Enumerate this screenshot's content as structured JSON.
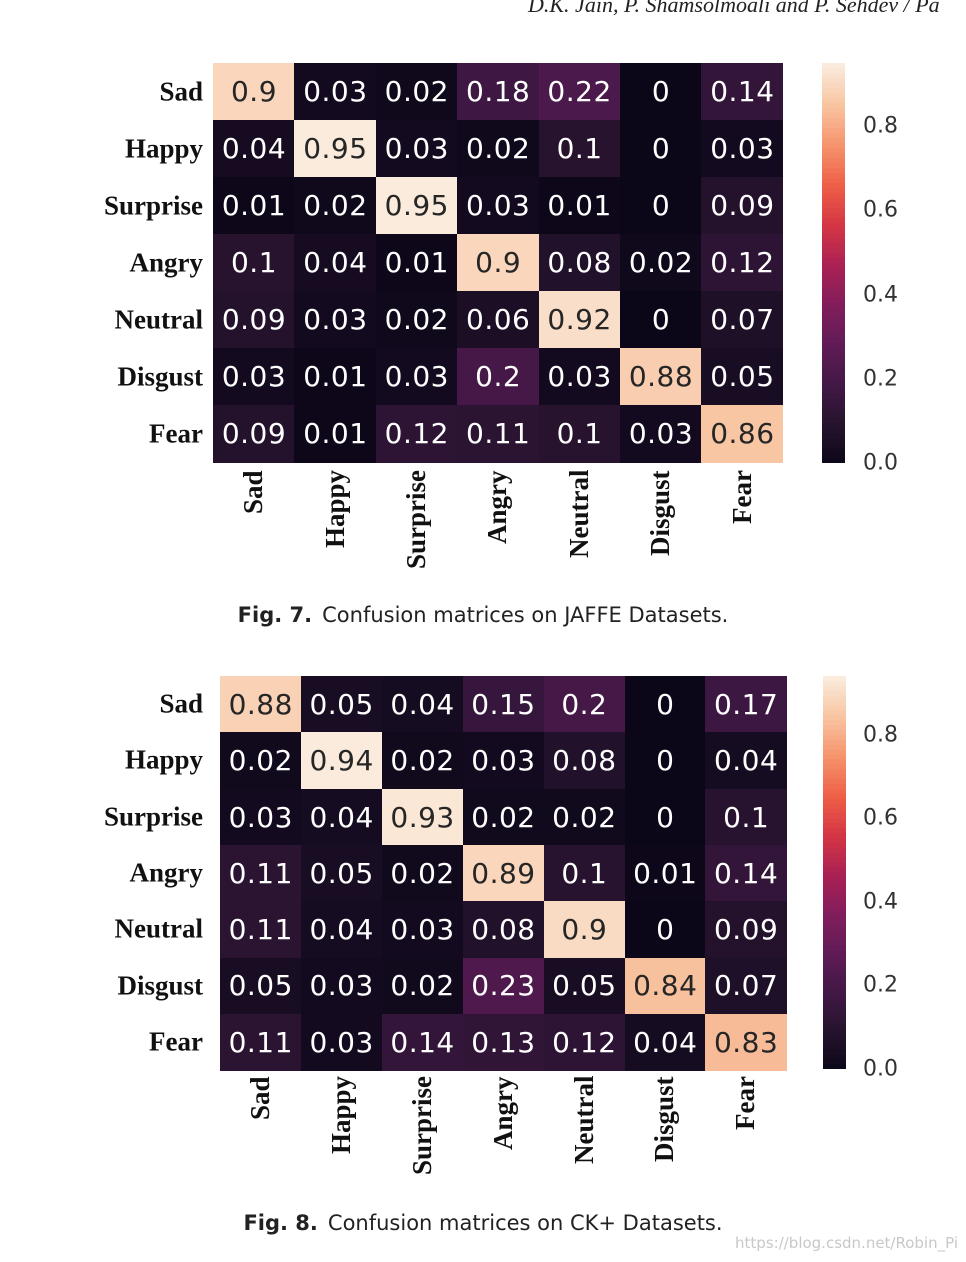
{
  "header": {
    "running_title": "D.K. Jain, P. Shamsolmoali and P. Sehdev / Pa"
  },
  "chart_data": [
    {
      "type": "heatmap",
      "figure_label": "Fig. 7.",
      "caption": "Confusion matrices on JAFFE Datasets.",
      "row_labels": [
        "Sad",
        "Happy",
        "Surprise",
        "Angry",
        "Neutral",
        "Disgust",
        "Fear"
      ],
      "col_labels": [
        "Sad",
        "Happy",
        "Surprise",
        "Angry",
        "Neutral",
        "Disgust",
        "Fear"
      ],
      "values": [
        [
          0.9,
          0.03,
          0.02,
          0.18,
          0.22,
          0,
          0.14
        ],
        [
          0.04,
          0.95,
          0.03,
          0.02,
          0.1,
          0,
          0.03
        ],
        [
          0.01,
          0.02,
          0.95,
          0.03,
          0.01,
          0,
          0.09
        ],
        [
          0.1,
          0.04,
          0.01,
          0.9,
          0.08,
          0.02,
          0.12
        ],
        [
          0.09,
          0.03,
          0.02,
          0.06,
          0.92,
          0,
          0.07
        ],
        [
          0.03,
          0.01,
          0.03,
          0.2,
          0.03,
          0.88,
          0.05
        ],
        [
          0.09,
          0.01,
          0.12,
          0.11,
          0.1,
          0.03,
          0.86
        ]
      ],
      "labels": [
        [
          "0.9",
          "0.03",
          "0.02",
          "0.18",
          "0.22",
          "0",
          "0.14"
        ],
        [
          "0.04",
          "0.95",
          "0.03",
          "0.02",
          "0.1",
          "0",
          "0.03"
        ],
        [
          "0.01",
          "0.02",
          "0.95",
          "0.03",
          "0.01",
          "0",
          "0.09"
        ],
        [
          "0.1",
          "0.04",
          "0.01",
          "0.9",
          "0.08",
          "0.02",
          "0.12"
        ],
        [
          "0.09",
          "0.03",
          "0.02",
          "0.06",
          "0.92",
          "0",
          "0.07"
        ],
        [
          "0.03",
          "0.01",
          "0.03",
          "0.2",
          "0.03",
          "0.88",
          "0.05"
        ],
        [
          "0.09",
          "0.01",
          "0.12",
          "0.11",
          "0.1",
          "0.03",
          "0.86"
        ]
      ],
      "colorbar": {
        "range": [
          0,
          0.95
        ],
        "ticks": [
          "0.0",
          "0.2",
          "0.4",
          "0.6",
          "0.8"
        ],
        "tick_values": [
          0,
          0.2,
          0.4,
          0.6,
          0.8
        ],
        "colormap": "rocket"
      }
    },
    {
      "type": "heatmap",
      "figure_label": "Fig. 8.",
      "caption": "Confusion matrices on CK+ Datasets.",
      "row_labels": [
        "Sad",
        "Happy",
        "Surprise",
        "Angry",
        "Neutral",
        "Disgust",
        "Fear"
      ],
      "col_labels": [
        "Sad",
        "Happy",
        "Surprise",
        "Angry",
        "Neutral",
        "Disgust",
        "Fear"
      ],
      "values": [
        [
          0.88,
          0.05,
          0.04,
          0.15,
          0.2,
          0,
          0.17
        ],
        [
          0.02,
          0.94,
          0.02,
          0.03,
          0.08,
          0,
          0.04
        ],
        [
          0.03,
          0.04,
          0.93,
          0.02,
          0.02,
          0,
          0.1
        ],
        [
          0.11,
          0.05,
          0.02,
          0.89,
          0.1,
          0.01,
          0.14
        ],
        [
          0.11,
          0.04,
          0.03,
          0.08,
          0.9,
          0,
          0.09
        ],
        [
          0.05,
          0.03,
          0.02,
          0.23,
          0.05,
          0.84,
          0.07
        ],
        [
          0.11,
          0.03,
          0.14,
          0.13,
          0.12,
          0.04,
          0.83
        ]
      ],
      "labels": [
        [
          "0.88",
          "0.05",
          "0.04",
          "0.15",
          "0.2",
          "0",
          "0.17"
        ],
        [
          "0.02",
          "0.94",
          "0.02",
          "0.03",
          "0.08",
          "0",
          "0.04"
        ],
        [
          "0.03",
          "0.04",
          "0.93",
          "0.02",
          "0.02",
          "0",
          "0.1"
        ],
        [
          "0.11",
          "0.05",
          "0.02",
          "0.89",
          "0.1",
          "0.01",
          "0.14"
        ],
        [
          "0.11",
          "0.04",
          "0.03",
          "0.08",
          "0.9",
          "0",
          "0.09"
        ],
        [
          "0.05",
          "0.03",
          "0.02",
          "0.23",
          "0.05",
          "0.84",
          "0.07"
        ],
        [
          "0.11",
          "0.03",
          "0.14",
          "0.13",
          "0.12",
          "0.04",
          "0.83"
        ]
      ],
      "colorbar": {
        "range": [
          0,
          0.94
        ],
        "ticks": [
          "0.0",
          "0.2",
          "0.4",
          "0.6",
          "0.8"
        ],
        "tick_values": [
          0,
          0.2,
          0.4,
          0.6,
          0.8
        ],
        "colormap": "rocket"
      }
    }
  ],
  "watermark": "https://blog.csdn.net/Robin_Pi"
}
